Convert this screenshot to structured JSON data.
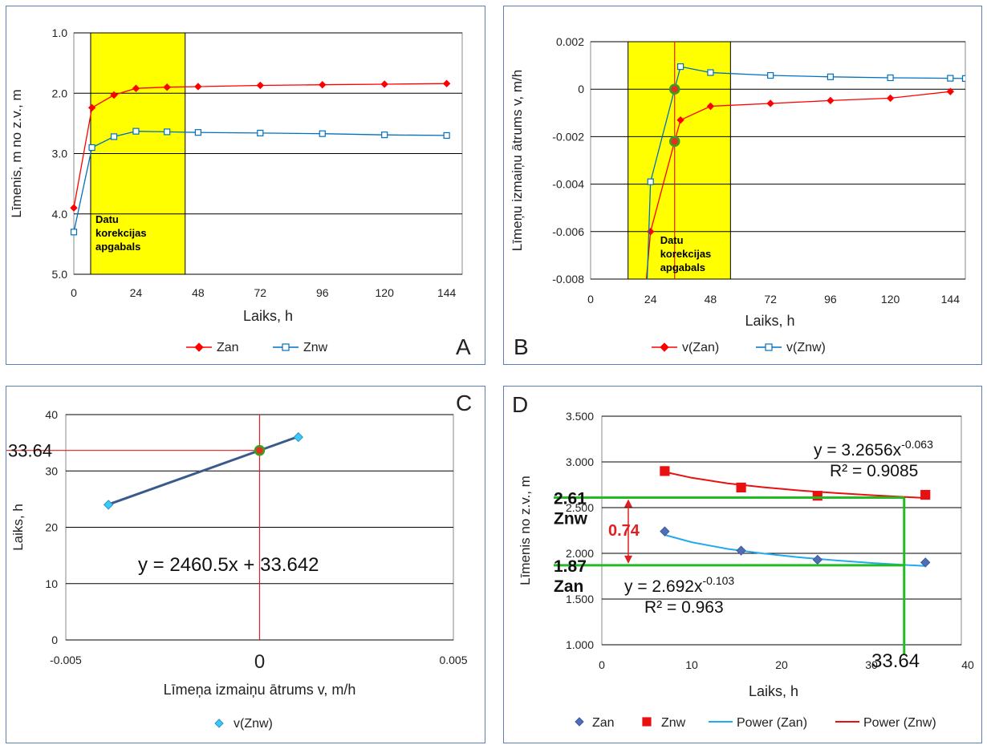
{
  "chart_data": [
    {
      "panel_letter": "A",
      "type": "line",
      "ylabel": "Līmenis, m no z.v., m",
      "xlabel": "Laiks, h",
      "xlim": [
        0,
        150
      ],
      "ylim": [
        5.0,
        1.0
      ],
      "y_reversed": true,
      "xticks": [
        "0",
        "24",
        "48",
        "72",
        "96",
        "120",
        "144"
      ],
      "yticks": [
        "1.0",
        "2.0",
        "3.0",
        "4.0",
        "5.0"
      ],
      "highlight_region": {
        "x": [
          6.5,
          43
        ],
        "color": "#ffff00",
        "label": [
          "Datu",
          "korekcijas",
          "apgabals"
        ]
      },
      "series": [
        {
          "name": "Zan",
          "color": "#ff0000",
          "marker": "diamond",
          "x": [
            0,
            7,
            15.5,
            24,
            36,
            48,
            72,
            96,
            120,
            144
          ],
          "y": [
            3.9,
            2.24,
            2.03,
            1.92,
            1.9,
            1.89,
            1.87,
            1.86,
            1.85,
            1.84
          ]
        },
        {
          "name": "Znw",
          "color": "#0070c0",
          "marker": "square",
          "x": [
            0,
            7,
            15.5,
            24,
            36,
            48,
            72,
            96,
            120,
            144
          ],
          "y": [
            4.3,
            2.9,
            2.72,
            2.63,
            2.64,
            2.65,
            2.66,
            2.67,
            2.69,
            2.7
          ]
        }
      ],
      "legend": "bottom"
    },
    {
      "panel_letter": "B",
      "type": "line",
      "ylabel": "Līmeņu izmaiņu ātrums v, m/h",
      "xlabel": "Laiks, h",
      "xlim": [
        0,
        150
      ],
      "ylim": [
        -0.008,
        0.002
      ],
      "xticks": [
        "0",
        "24",
        "48",
        "72",
        "96",
        "120",
        "144"
      ],
      "yticks": [
        "0.002",
        "0",
        "-0.002",
        "-0.004",
        "-0.006",
        "-0.008"
      ],
      "highlight_region": {
        "x": [
          15,
          56
        ],
        "color": "#ffff00",
        "label": [
          "Datu",
          "korekcijas",
          "apgabals"
        ]
      },
      "vline_x": 33.64,
      "highlight_points": [
        [
          33.64,
          0
        ],
        [
          33.64,
          -0.0022
        ]
      ],
      "series": [
        {
          "name": "v(Zan)",
          "color": "#ff0000",
          "marker": "diamond",
          "x": [
            19,
            24,
            33.64,
            36,
            48,
            72,
            96,
            120,
            144
          ],
          "y": [
            -0.012,
            -0.006,
            -0.0022,
            -0.0013,
            -0.00072,
            -0.0006,
            -0.00048,
            -0.00038,
            -0.0001
          ]
        },
        {
          "name": "v(Znw)",
          "color": "#0070c0",
          "marker": "square",
          "x": [
            22,
            24,
            33.64,
            36,
            48,
            72,
            96,
            120,
            144,
            150
          ],
          "y": [
            -0.01,
            -0.0039,
            0,
            0.00095,
            0.0007,
            0.00058,
            0.00052,
            0.00048,
            0.00046,
            0.00045
          ]
        }
      ],
      "legend": "bottom"
    },
    {
      "panel_letter": "C",
      "type": "scatter",
      "ylabel": "Laiks, h",
      "xlabel": "Līmeņa izmaiņu ātrums v, m/h",
      "xlim": [
        -0.005,
        0.005
      ],
      "ylim": [
        0,
        40
      ],
      "xticks": [
        "-0.005",
        "0",
        "0.005"
      ],
      "yticks": [
        "0",
        "10",
        "20",
        "30",
        "40"
      ],
      "series": [
        {
          "name": "v(Znw)",
          "color": "#33ccff",
          "marker": "diamond",
          "x": [
            -0.0039,
            0.001
          ],
          "y": [
            24,
            36
          ]
        }
      ],
      "trendline": {
        "x": [
          -0.0039,
          0.001
        ],
        "color": "#3a5a8c",
        "equation": "y = 2460.5x + 33.642"
      },
      "intersection_point": {
        "x": 0,
        "y": 33.64
      },
      "intersection_label": "33.64",
      "zero_label": "0",
      "legend": "bottom"
    },
    {
      "panel_letter": "D",
      "type": "scatter",
      "ylabel": "Līmenis no z.v., m",
      "xlabel": "Laiks, h",
      "xlim": [
        0,
        40
      ],
      "ylim": [
        1.0,
        3.5
      ],
      "xticks": [
        "0",
        "10",
        "20",
        "30",
        "40"
      ],
      "yticks": [
        "1.000",
        "1.500",
        "2.000",
        "2.500",
        "3.000",
        "3.500"
      ],
      "series": [
        {
          "name": "Zan",
          "color": "#4e6fb8",
          "marker": "diamond",
          "x": [
            7,
            15.5,
            24,
            36
          ],
          "y": [
            2.24,
            2.03,
            1.93,
            1.9
          ]
        },
        {
          "name": "Znw",
          "color": "#e81010",
          "marker": "square",
          "x": [
            7,
            15.5,
            24,
            36
          ],
          "y": [
            2.9,
            2.72,
            2.63,
            2.64
          ]
        },
        {
          "name": "Power (Zan)",
          "color": "#22aaee",
          "type": "trend",
          "x": [
            7,
            10,
            14,
            18,
            22,
            26,
            30,
            34,
            36
          ],
          "y": [
            2.202,
            2.122,
            2.048,
            1.997,
            1.956,
            1.923,
            1.895,
            1.872,
            1.862
          ]
        },
        {
          "name": "Power (Znw)",
          "color": "#e81010",
          "type": "trend",
          "x": [
            7,
            10,
            14,
            18,
            22,
            26,
            30,
            34,
            36
          ],
          "y": [
            2.89,
            2.826,
            2.766,
            2.723,
            2.688,
            2.66,
            2.636,
            2.615,
            2.606
          ]
        }
      ],
      "equations": {
        "znw": {
          "prefix": "y = 3.2656x",
          "exp": "-0.063",
          "r2": "R² = 0.9085"
        },
        "zan": {
          "prefix": "y = 2.692x",
          "exp": "-0.103",
          "r2": "R² = 0.963"
        }
      },
      "green_lines": {
        "x": 33.64,
        "y_znw": 2.61,
        "y_zan": 1.87,
        "color": "#22bb22"
      },
      "annotations": {
        "znw_value": "2.61",
        "znw_name": "Znw",
        "zan_value": "1.87",
        "zan_name": "Zan",
        "diff": "0.74",
        "x_marker": "33.64"
      },
      "legend": "bottom"
    }
  ]
}
